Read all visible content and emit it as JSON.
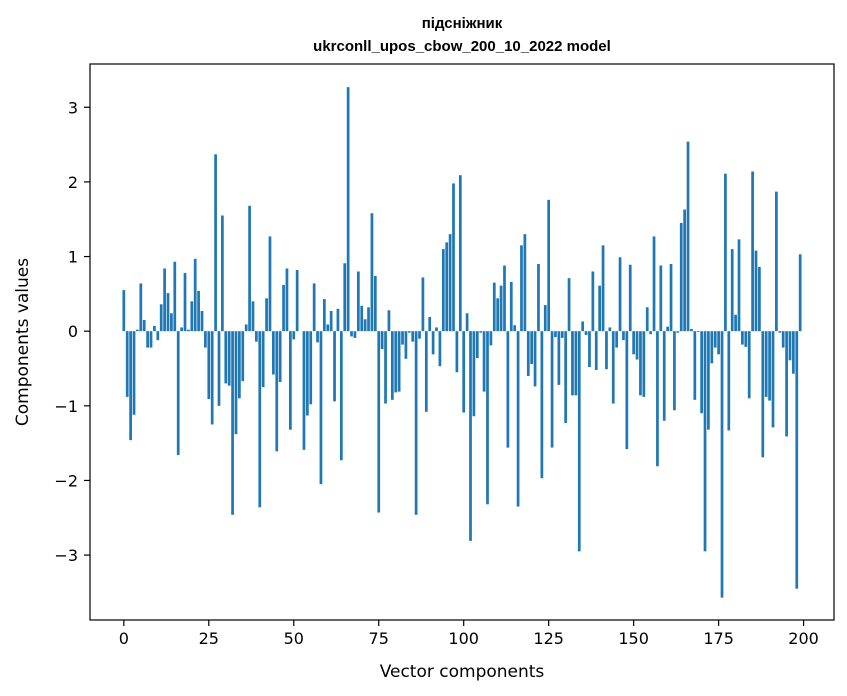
{
  "chart_data": {
    "type": "bar",
    "title": [
      "підсніжник",
      "ukrconll_upos_cbow_200_10_2022 model"
    ],
    "xlabel": "Vector components",
    "ylabel": "Components values",
    "xlim": [
      -9.95,
      208.95
    ],
    "ylim": [
      -3.87,
      3.58
    ],
    "xticks": [
      0,
      25,
      50,
      75,
      100,
      125,
      150,
      175,
      200
    ],
    "yticks": [
      -3,
      -2,
      -1,
      0,
      1,
      2,
      3
    ],
    "bar_color": "#1f77b4",
    "x": [
      0,
      1,
      2,
      3,
      4,
      5,
      6,
      7,
      8,
      9,
      10,
      11,
      12,
      13,
      14,
      15,
      16,
      17,
      18,
      19,
      20,
      21,
      22,
      23,
      24,
      25,
      26,
      27,
      28,
      29,
      30,
      31,
      32,
      33,
      34,
      35,
      36,
      37,
      38,
      39,
      40,
      41,
      42,
      43,
      44,
      45,
      46,
      47,
      48,
      49,
      50,
      51,
      52,
      53,
      54,
      55,
      56,
      57,
      58,
      59,
      60,
      61,
      62,
      63,
      64,
      65,
      66,
      67,
      68,
      69,
      70,
      71,
      72,
      73,
      74,
      75,
      76,
      77,
      78,
      79,
      80,
      81,
      82,
      83,
      84,
      85,
      86,
      87,
      88,
      89,
      90,
      91,
      92,
      93,
      94,
      95,
      96,
      97,
      98,
      99,
      100,
      101,
      102,
      103,
      104,
      105,
      106,
      107,
      108,
      109,
      110,
      111,
      112,
      113,
      114,
      115,
      116,
      117,
      118,
      119,
      120,
      121,
      122,
      123,
      124,
      125,
      126,
      127,
      128,
      129,
      130,
      131,
      132,
      133,
      134,
      135,
      136,
      137,
      138,
      139,
      140,
      141,
      142,
      143,
      144,
      145,
      146,
      147,
      148,
      149,
      150,
      151,
      152,
      153,
      154,
      155,
      156,
      157,
      158,
      159,
      160,
      161,
      162,
      163,
      164,
      165,
      166,
      167,
      168,
      169,
      170,
      171,
      172,
      173,
      174,
      175,
      176,
      177,
      178,
      179,
      180,
      181,
      182,
      183,
      184,
      185,
      186,
      187,
      188,
      189,
      190,
      191,
      192,
      193,
      194,
      195,
      196,
      197,
      198,
      199
    ],
    "values": [
      0.55,
      -0.88,
      -1.46,
      -1.12,
      0.02,
      0.64,
      0.15,
      -0.22,
      -0.22,
      0.07,
      -0.12,
      0.36,
      0.84,
      0.51,
      0.24,
      0.93,
      -1.66,
      0.05,
      0.78,
      0.02,
      0.4,
      0.97,
      0.54,
      0.27,
      -0.22,
      -0.91,
      -1.25,
      2.37,
      -1.0,
      1.55,
      -0.7,
      -0.73,
      -2.46,
      -1.38,
      -0.9,
      -0.67,
      0.09,
      1.68,
      0.4,
      -0.14,
      -2.36,
      -0.75,
      0.44,
      1.27,
      -0.58,
      -1.61,
      -0.68,
      0.62,
      0.84,
      -1.32,
      -0.11,
      0.82,
      0.0,
      -1.59,
      -1.13,
      -0.98,
      0.64,
      -0.15,
      -2.05,
      0.43,
      0.09,
      0.27,
      -0.94,
      0.3,
      -1.73,
      0.91,
      3.27,
      -0.07,
      -0.09,
      0.8,
      0.34,
      0.16,
      0.32,
      1.58,
      0.74,
      -2.43,
      -0.24,
      -0.97,
      0.28,
      -0.92,
      -0.82,
      -0.81,
      -0.18,
      -0.37,
      -0.02,
      -0.14,
      -2.46,
      -0.1,
      0.72,
      -1.08,
      0.19,
      -0.31,
      0.05,
      -0.47,
      1.1,
      1.19,
      1.3,
      1.98,
      -0.55,
      2.09,
      -1.09,
      0.24,
      -2.81,
      -1.14,
      -0.36,
      -0.02,
      -0.81,
      -2.32,
      -0.19,
      0.65,
      0.44,
      0.61,
      0.88,
      -1.56,
      0.66,
      0.08,
      -2.35,
      1.15,
      1.3,
      -0.6,
      -0.44,
      -0.74,
      0.9,
      -1.97,
      0.35,
      1.76,
      -1.56,
      -0.08,
      -0.72,
      -0.09,
      -1.23,
      0.71,
      -0.86,
      -0.86,
      -2.95,
      0.13,
      -0.05,
      -0.48,
      0.8,
      -0.52,
      0.61,
      1.15,
      -0.51,
      0.05,
      -0.97,
      -0.22,
      0.99,
      -0.12,
      -1.58,
      0.89,
      -0.31,
      -0.38,
      -0.86,
      -0.88,
      0.32,
      -0.04,
      1.27,
      -1.81,
      0.88,
      -1.2,
      0.06,
      0.9,
      -1.06,
      -0.02,
      1.45,
      1.63,
      2.54,
      0.03,
      -0.92,
      -0.01,
      -1.1,
      -2.95,
      -1.32,
      -0.43,
      -0.22,
      -0.31,
      -3.57,
      2.11,
      -1.33,
      1.1,
      0.22,
      1.23,
      -0.18,
      -0.21,
      -0.9,
      2.14,
      1.08,
      0.86,
      -1.69,
      -0.88,
      -0.93,
      -1.29,
      1.87,
      -0.02,
      -0.22,
      -1.41,
      -0.39,
      -0.57,
      -3.45,
      1.03
    ]
  }
}
